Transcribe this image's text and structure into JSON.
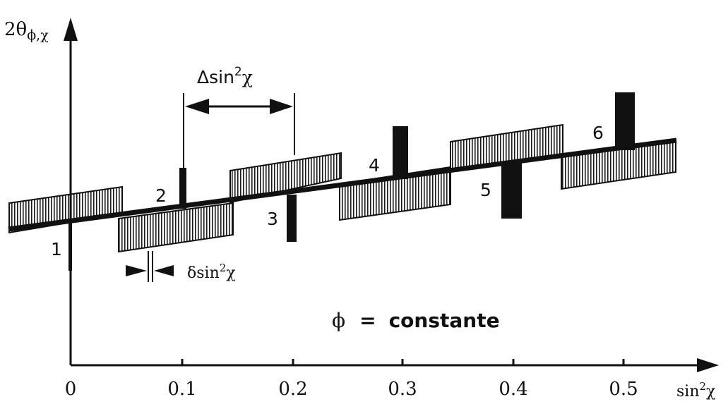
{
  "axes": {
    "y_label_main": "2θ",
    "y_label_sub": "ϕ,χ",
    "x_label_main": "sin",
    "x_label_sup": "2",
    "x_label_tail": "χ",
    "x_ticks": [
      "0",
      "0.1",
      "0.2",
      "0.3",
      "0.4",
      "0.5"
    ]
  },
  "spacing_label": {
    "main": "Δsin",
    "sup": "2",
    "tail": "χ"
  },
  "width_label": {
    "main": "δsin",
    "sup": "2",
    "tail": "χ"
  },
  "markers": [
    {
      "label": "1",
      "sin2chi": 0.0,
      "deviation": "down"
    },
    {
      "label": "2",
      "sin2chi": 0.1,
      "deviation": "up"
    },
    {
      "label": "3",
      "sin2chi": 0.2,
      "deviation": "down"
    },
    {
      "label": "4",
      "sin2chi": 0.3,
      "deviation": "up"
    },
    {
      "label": "5",
      "sin2chi": 0.4,
      "deviation": "down"
    },
    {
      "label": "6",
      "sin2chi": 0.5,
      "deviation": "up"
    }
  ],
  "caption": {
    "symbol": "ϕ",
    "equals": "=",
    "word": "constante"
  }
}
